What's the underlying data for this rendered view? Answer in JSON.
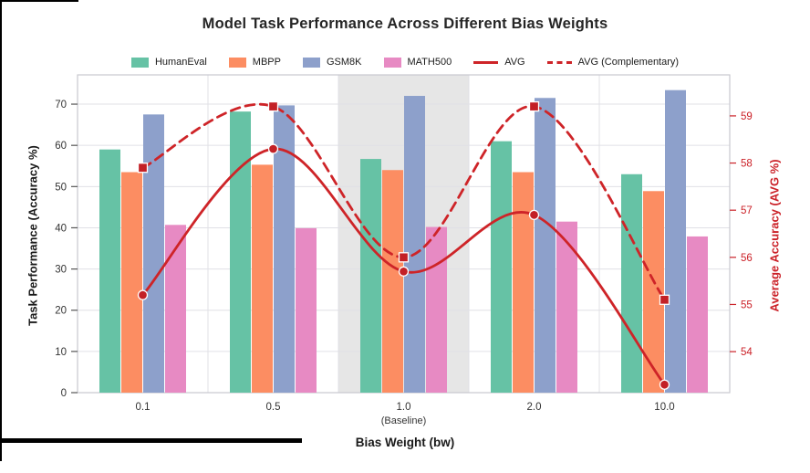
{
  "title": "Model Task Performance Across Different Bias Weights",
  "xlabel": "Bias Weight (bw)",
  "ylabel_left": "Task Performance (Accuracy %)",
  "ylabel_right": "Average Accuracy (AVG %)",
  "chart_data": {
    "type": "bar",
    "categories": [
      "0.1",
      "0.5",
      "1.0",
      "2.0",
      "10.0"
    ],
    "category_sublabels": [
      "",
      "",
      "(Baseline)",
      "",
      ""
    ],
    "series": [
      {
        "name": "HumanEval",
        "color": "#66c2a5",
        "values": [
          59.0,
          68.2,
          56.7,
          61.0,
          53.0
        ]
      },
      {
        "name": "MBPP",
        "color": "#fc8d62",
        "values": [
          53.5,
          55.3,
          54.0,
          53.5,
          48.9
        ]
      },
      {
        "name": "GSM8K",
        "color": "#8da0cb",
        "values": [
          67.5,
          69.7,
          72.0,
          71.5,
          73.4
        ]
      },
      {
        "name": "MATH500",
        "color": "#e78ac3",
        "values": [
          40.7,
          39.9,
          40.2,
          41.5,
          37.9
        ]
      }
    ],
    "lines": [
      {
        "name": "AVG",
        "color": "#ce2428",
        "style": "solid",
        "marker": "circle",
        "axis": "right",
        "values": [
          55.2,
          58.3,
          55.7,
          56.9,
          53.3
        ]
      },
      {
        "name": "AVG (Complementary)",
        "color": "#ce2428",
        "style": "dashed",
        "marker": "square",
        "axis": "right",
        "values": [
          57.9,
          59.2,
          56.0,
          59.2,
          55.1
        ]
      }
    ],
    "yticks_left": [
      0,
      10,
      20,
      30,
      40,
      50,
      60,
      70
    ],
    "yticks_right": [
      54,
      55,
      56,
      57,
      58,
      59
    ],
    "ylim_left": [
      0,
      77.1
    ],
    "ylim_right": [
      53.13,
      59.87
    ],
    "baseline_band": {
      "category_index": 2,
      "color": "#d8d8d8"
    },
    "grid": true,
    "legend_position": "top",
    "tick_color_left": "#333333",
    "tick_color_right": "#cb2128"
  }
}
